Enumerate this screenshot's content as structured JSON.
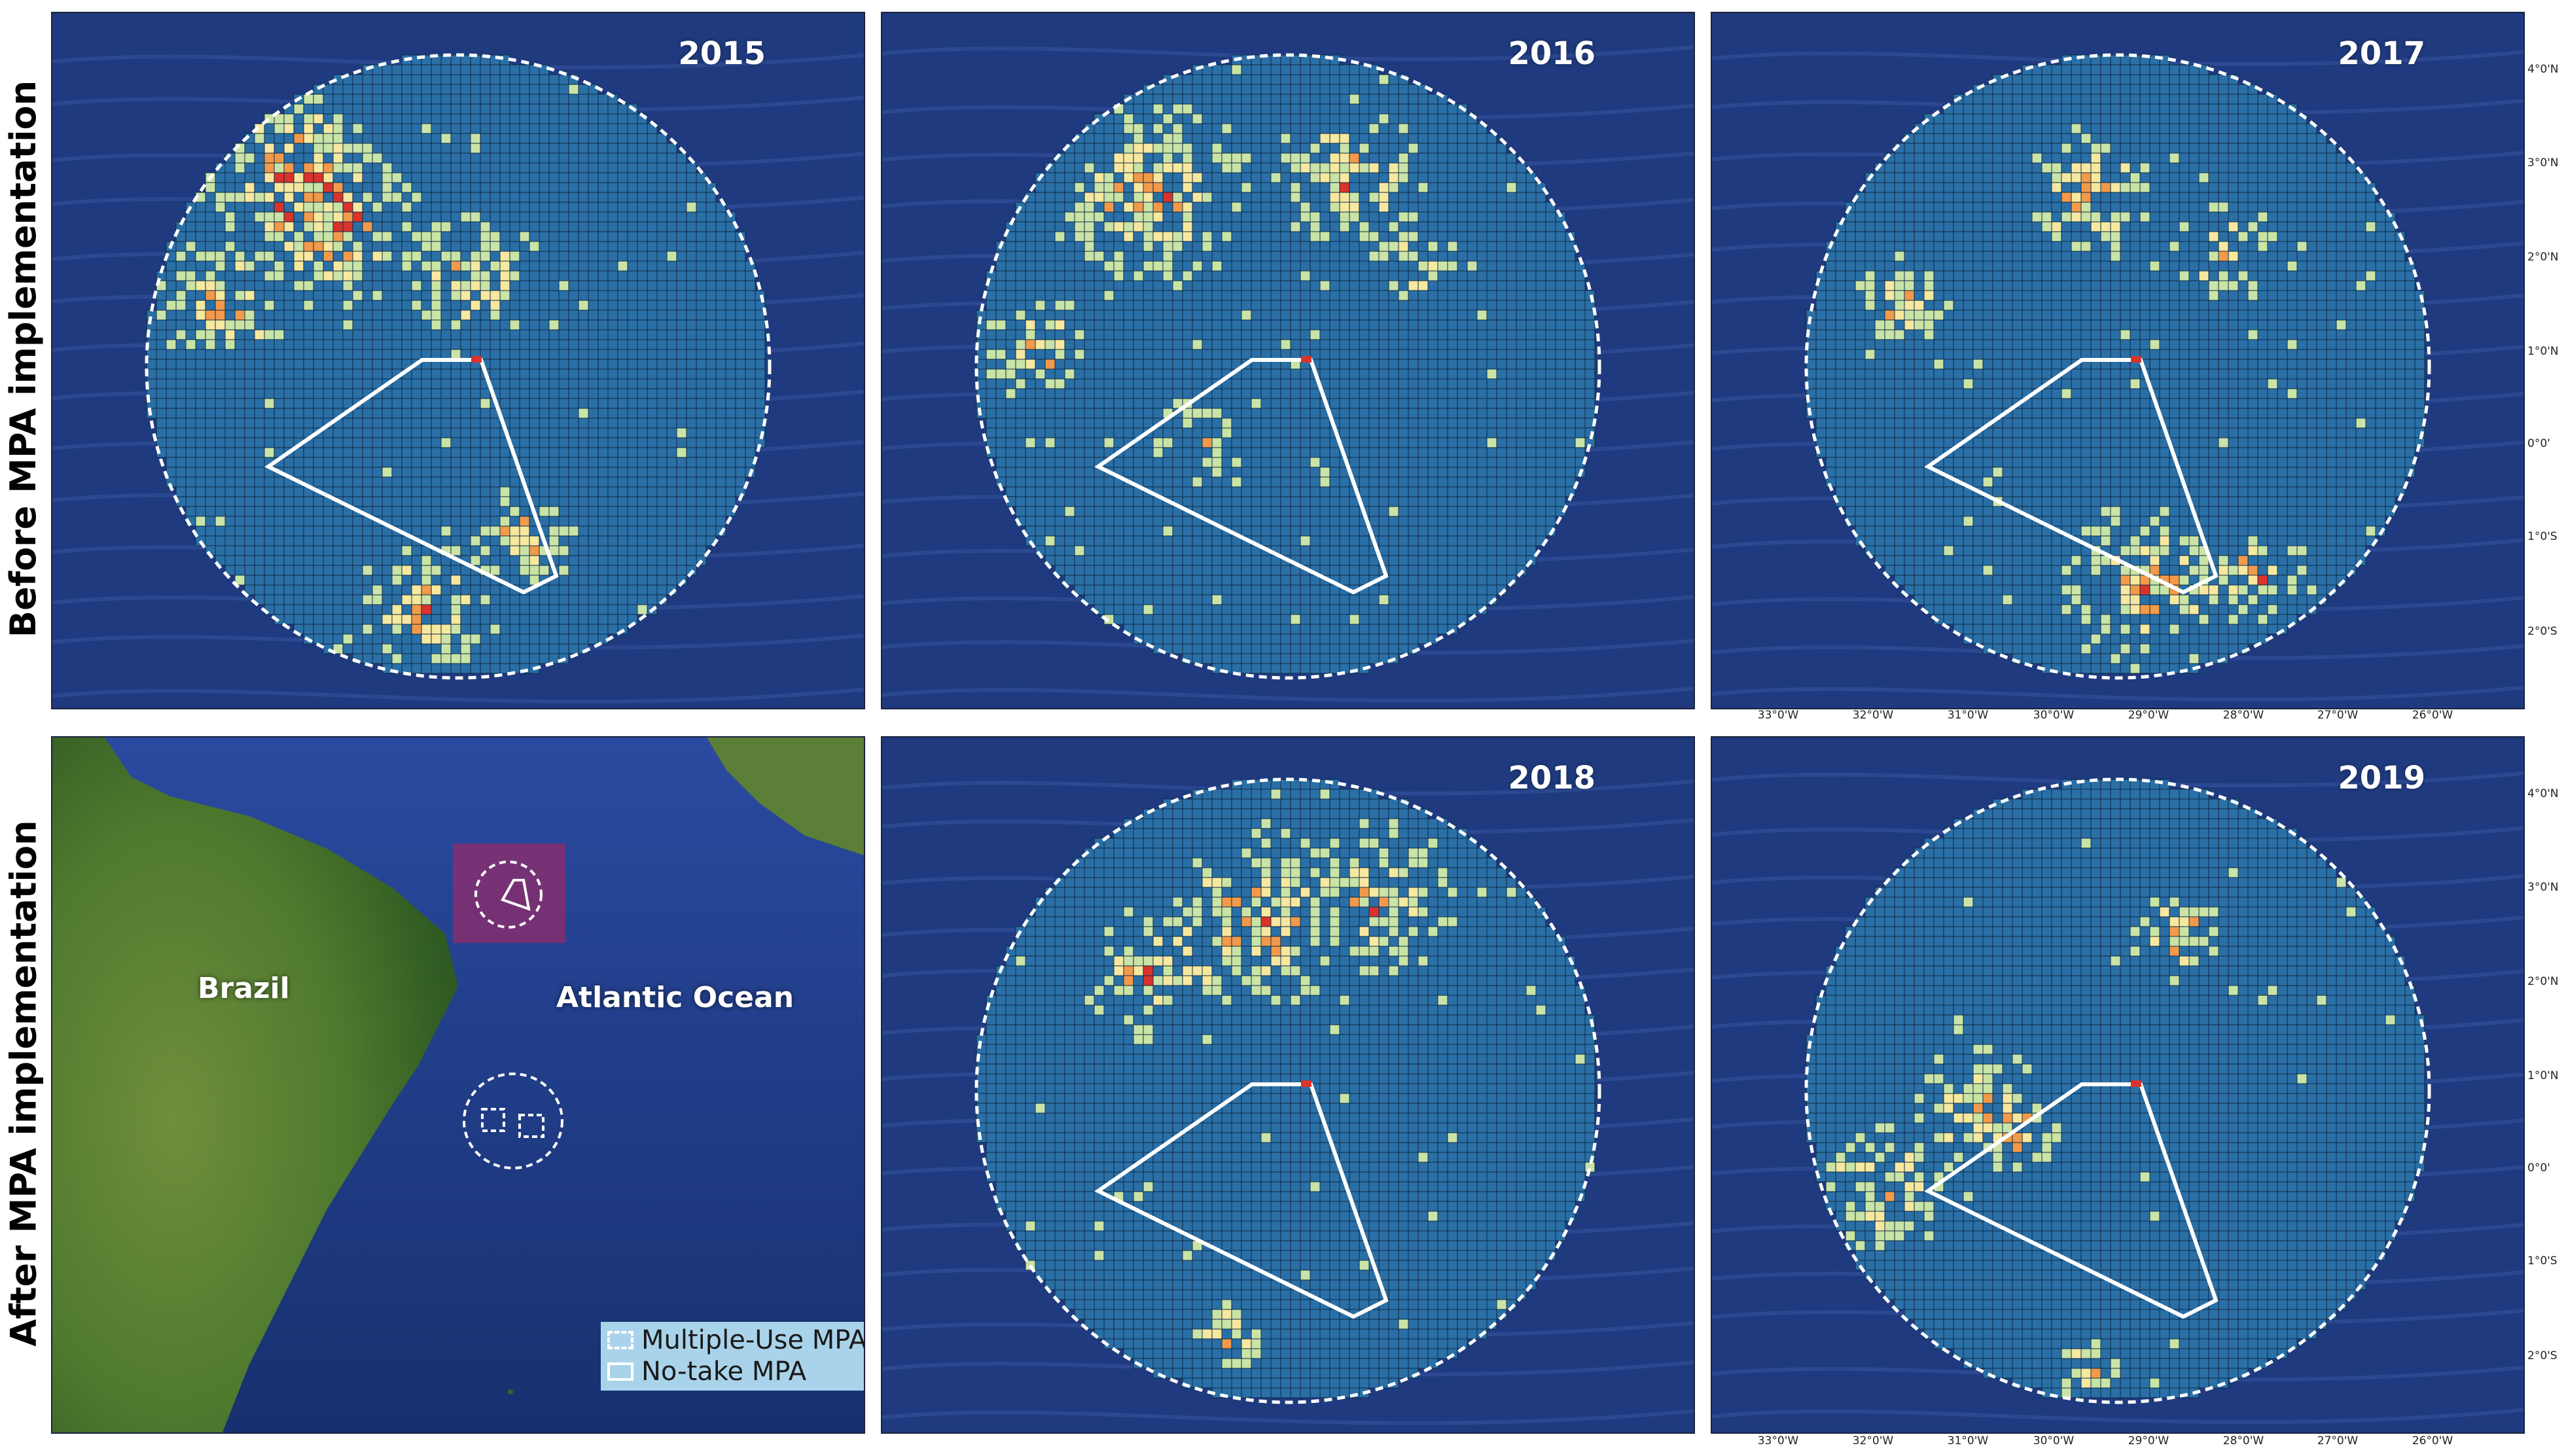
{
  "row_labels": {
    "top": "Before MPA implementation",
    "bottom": "After MPA implementation"
  },
  "panels": [
    {
      "year": "2015"
    },
    {
      "year": "2016"
    },
    {
      "year": "2017"
    },
    {
      "year": "2018"
    },
    {
      "year": "2019"
    }
  ],
  "overview_map": {
    "labels": {
      "land": "Brazil",
      "ocean": "Atlantic Ocean"
    },
    "legend": [
      {
        "label": "Multiple-Use MPA",
        "style": "dashed"
      },
      {
        "label": "No-take MPA",
        "style": "solid"
      }
    ]
  },
  "axes": {
    "y_ticks": [
      "4°0'N",
      "3°0'N",
      "2°0'N",
      "1°0'N",
      "0°0'",
      "1°0'S",
      "2°0'S"
    ],
    "x_ticks": [
      "33°0'W",
      "32°0'W",
      "31°0'W",
      "30°0'W",
      "29°0'W",
      "28°0'W",
      "27°0'W",
      "26°0'W"
    ]
  },
  "colors": {
    "grid_fill": "#2a6fa6",
    "grid_line": "#0d2a44",
    "ocean": "#1f3a7e",
    "low": "#c9e4a6",
    "mid": "#f7e8a0",
    "high": "#f29a4a",
    "very_high": "#d9332b"
  },
  "hotspots": [
    [
      [
        -0.55,
        -0.62,
        0.3
      ],
      [
        -0.4,
        -0.45,
        0.28
      ],
      [
        -0.75,
        -0.2,
        0.22
      ],
      [
        -0.1,
        0.78,
        0.22
      ],
      [
        0.2,
        0.55,
        0.18
      ],
      [
        0.05,
        -0.3,
        0.22
      ]
    ],
    [
      [
        -0.45,
        -0.55,
        0.32
      ],
      [
        0.2,
        -0.62,
        0.25
      ],
      [
        -0.8,
        -0.05,
        0.18
      ],
      [
        -0.3,
        0.25,
        0.15
      ],
      [
        0.4,
        -0.35,
        0.15
      ]
    ],
    [
      [
        0.1,
        0.72,
        0.28
      ],
      [
        0.45,
        0.68,
        0.18
      ],
      [
        -0.1,
        -0.55,
        0.22
      ],
      [
        0.35,
        -0.35,
        0.18
      ],
      [
        -0.7,
        -0.2,
        0.16
      ]
    ],
    [
      [
        -0.1,
        -0.55,
        0.32
      ],
      [
        0.3,
        -0.62,
        0.25
      ],
      [
        -0.45,
        -0.38,
        0.22
      ],
      [
        -0.2,
        0.78,
        0.12
      ]
    ],
    [
      [
        -0.75,
        0.3,
        0.22
      ],
      [
        -0.45,
        0.05,
        0.22
      ],
      [
        -0.3,
        0.15,
        0.12
      ],
      [
        -0.1,
        0.9,
        0.1
      ],
      [
        0.2,
        -0.5,
        0.15
      ]
    ]
  ]
}
